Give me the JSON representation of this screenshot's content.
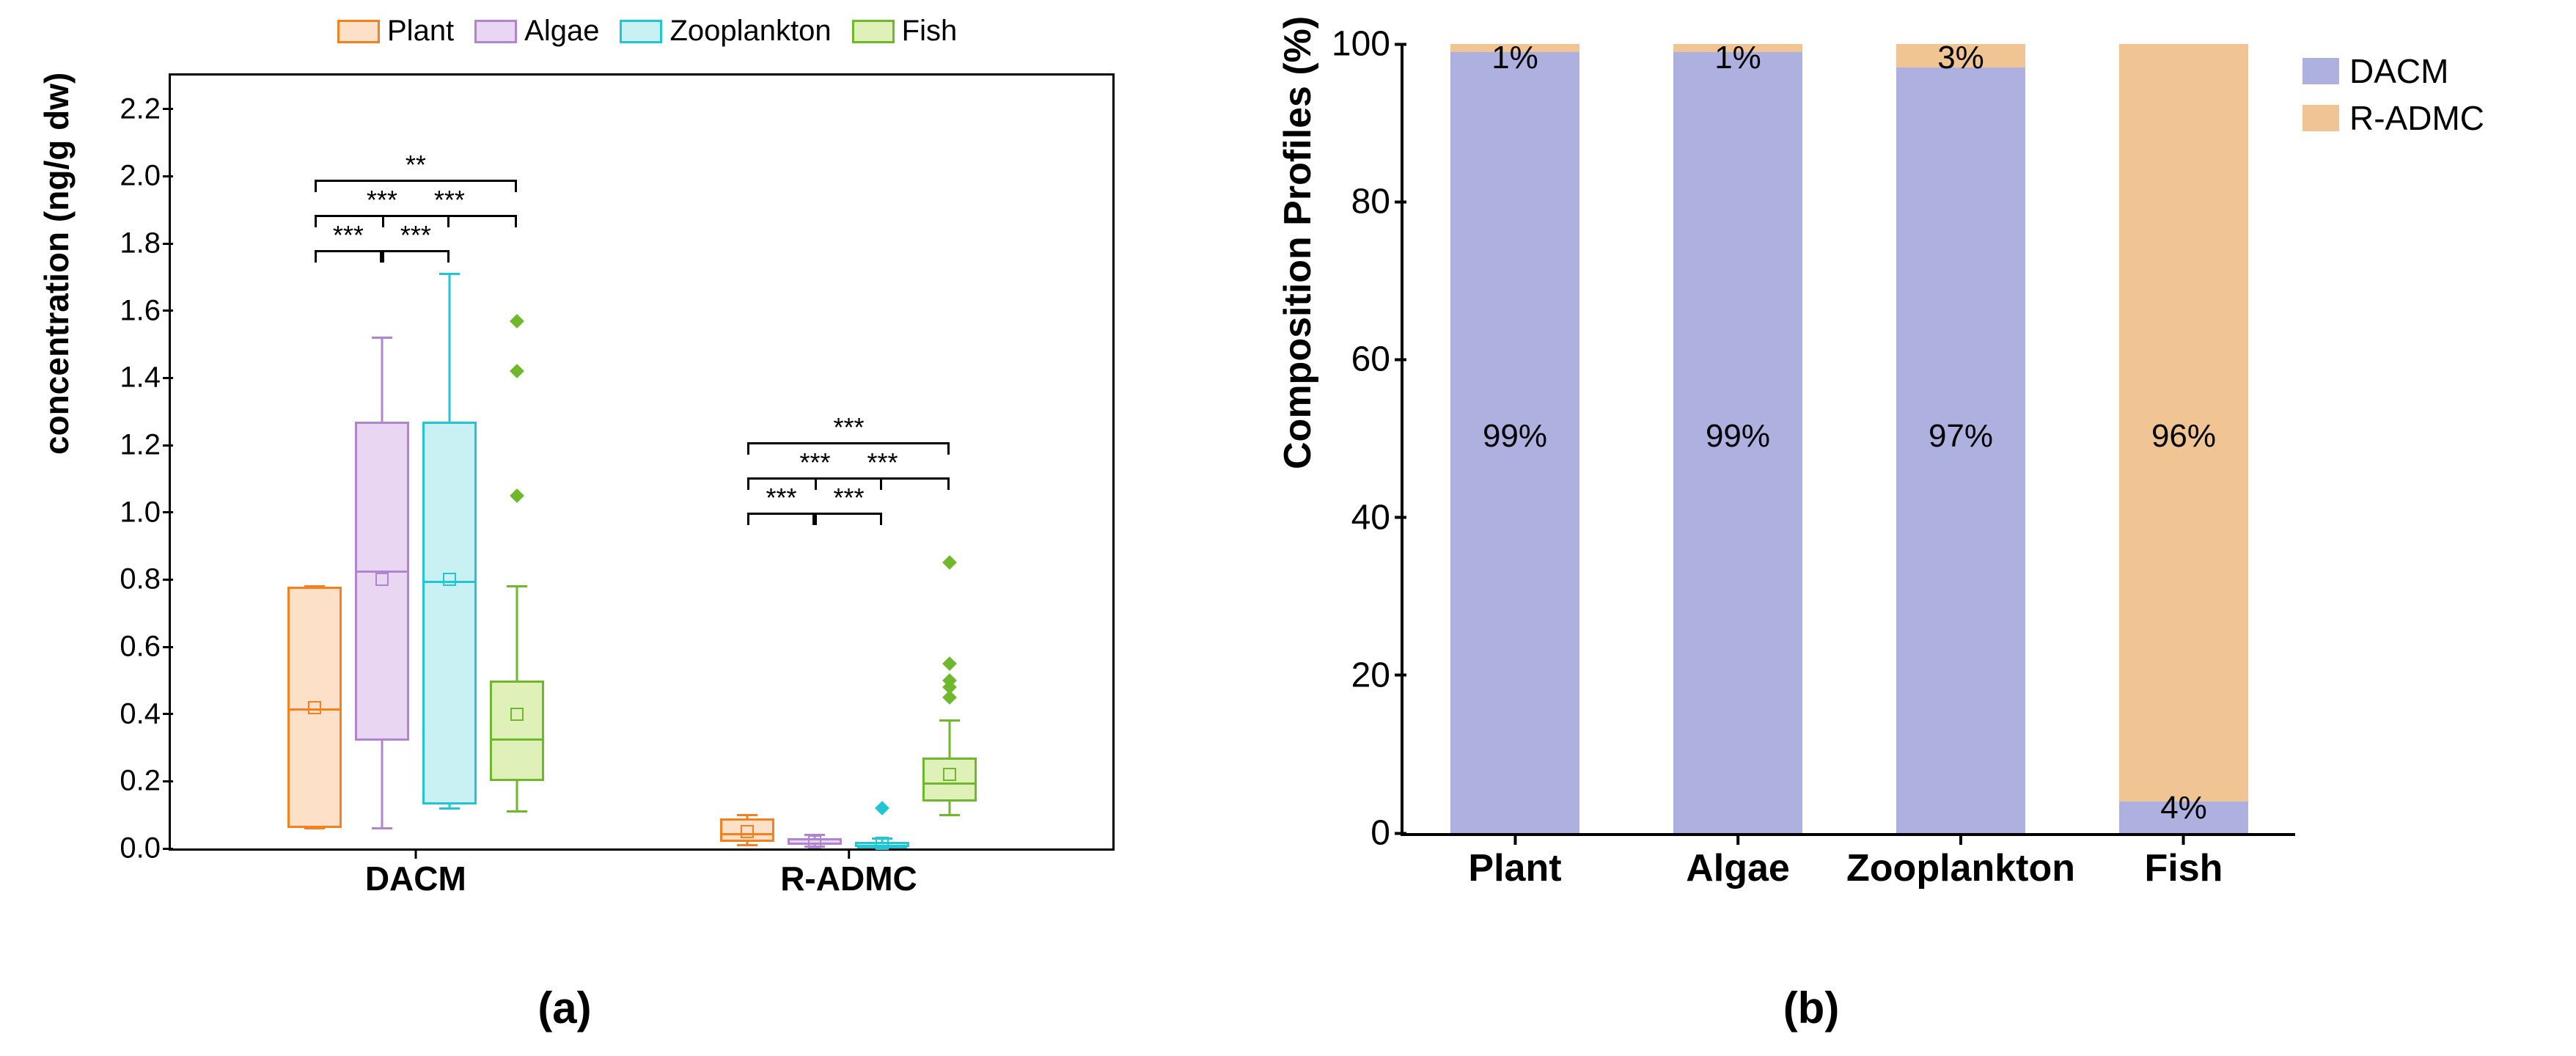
{
  "panel_a": {
    "type": "grouped-boxplot",
    "ylabel": "concentration (ng/g dw)",
    "ylim": [
      0,
      2.3
    ],
    "ytick_step": 0.2,
    "groups": [
      "DACM",
      "R-ADMC"
    ],
    "categories": [
      "Plant",
      "Algae",
      "Zooplankton",
      "Fish"
    ],
    "colors": {
      "Plant": {
        "fill": "#fde0c8",
        "stroke": "#f58020"
      },
      "Algae": {
        "fill": "#e9d6f2",
        "stroke": "#b184d1"
      },
      "Zooplankton": {
        "fill": "#c9f0f2",
        "stroke": "#21c5d4"
      },
      "Fish": {
        "fill": "#dff0b8",
        "stroke": "#6fb82b"
      }
    },
    "boxes": {
      "DACM": {
        "Plant": {
          "q1": 0.06,
          "median": 0.42,
          "q3": 0.78,
          "wlo": 0.06,
          "whi": 0.78,
          "mean": 0.42
        },
        "Algae": {
          "q1": 0.32,
          "median": 0.83,
          "q3": 1.27,
          "wlo": 0.06,
          "whi": 1.52,
          "mean": 0.8
        },
        "Zooplankton": {
          "q1": 0.13,
          "median": 0.8,
          "q3": 1.27,
          "wlo": 0.12,
          "whi": 1.71,
          "mean": 0.8
        },
        "Fish": {
          "q1": 0.2,
          "median": 0.33,
          "q3": 0.5,
          "wlo": 0.11,
          "whi": 0.78,
          "mean": 0.4,
          "outliers": [
            1.05,
            1.42,
            1.57
          ]
        }
      },
      "R-ADMC": {
        "Plant": {
          "q1": 0.02,
          "median": 0.05,
          "q3": 0.09,
          "wlo": 0.01,
          "whi": 0.1,
          "mean": 0.05
        },
        "Algae": {
          "q1": 0.01,
          "median": 0.02,
          "q3": 0.03,
          "wlo": 0.005,
          "whi": 0.04,
          "mean": 0.02
        },
        "Zooplankton": {
          "q1": 0.005,
          "median": 0.01,
          "q3": 0.02,
          "wlo": 0.004,
          "whi": 0.03,
          "mean": 0.015,
          "outliers": [
            0.12
          ]
        },
        "Fish": {
          "q1": 0.14,
          "median": 0.2,
          "q3": 0.27,
          "wlo": 0.1,
          "whi": 0.38,
          "mean": 0.22,
          "outliers": [
            0.45,
            0.48,
            0.5,
            0.55,
            0.85
          ]
        }
      }
    },
    "sig": {
      "DACM": [
        {
          "from": "Plant",
          "to": "Algae",
          "label": "***",
          "level": 0
        },
        {
          "from": "Plant",
          "to": "Zooplankton",
          "label": "***",
          "level": 1
        },
        {
          "from": "Plant",
          "to": "Fish",
          "label": "**",
          "level": 2
        },
        {
          "from": "Algae",
          "to": "Zooplankton",
          "label": "***",
          "level": 0,
          "side": "right"
        },
        {
          "from": "Algae",
          "to": "Fish",
          "label": "***",
          "level": 1,
          "side": "right"
        }
      ],
      "R-ADMC": [
        {
          "from": "Plant",
          "to": "Algae",
          "label": "***",
          "level": 0
        },
        {
          "from": "Plant",
          "to": "Zooplankton",
          "label": "***",
          "level": 1
        },
        {
          "from": "Plant",
          "to": "Fish",
          "label": "***",
          "level": 2
        },
        {
          "from": "Algae",
          "to": "Zooplankton",
          "label": "***",
          "level": 0,
          "side": "right"
        },
        {
          "from": "Algae",
          "to": "Fish",
          "label": "***",
          "level": 1,
          "side": "right"
        }
      ]
    },
    "legend": [
      "Plant",
      "Algae",
      "Zooplankton",
      "Fish"
    ],
    "sublabel": "(a)"
  },
  "panel_b": {
    "type": "stacked-bar",
    "ylabel": "Composition Profiles (%)",
    "ylim": [
      0,
      100
    ],
    "ytick_step": 20,
    "categories": [
      "Plant",
      "Algae",
      "Zooplankton",
      "Fish"
    ],
    "series": [
      "DACM",
      "R-ADMC"
    ],
    "colors": {
      "DACM": "#aeb0e0",
      "R-ADMC": "#f0c493"
    },
    "data": {
      "Plant": {
        "DACM": 99,
        "R-ADMC": 1
      },
      "Algae": {
        "DACM": 99,
        "R-ADMC": 1
      },
      "Zooplankton": {
        "DACM": 97,
        "R-ADMC": 3
      },
      "Fish": {
        "DACM": 4,
        "R-ADMC": 96
      }
    },
    "bar_width_pct": 58,
    "sublabel": "(b)"
  }
}
